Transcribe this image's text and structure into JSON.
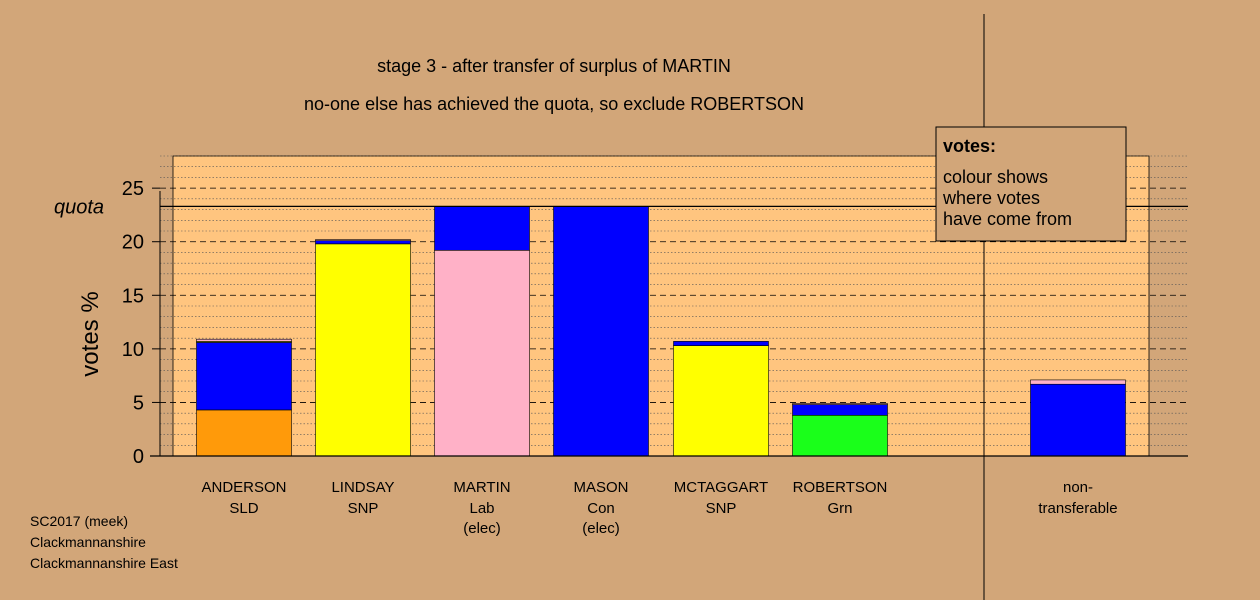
{
  "title": {
    "line1": "stage 3 - after transfer of surplus of MARTIN",
    "line2": "no-one else has achieved the quota, so exclude ROBERTSON"
  },
  "legend": {
    "heading": "votes:",
    "lines": [
      "colour shows",
      "where votes",
      "have come from"
    ]
  },
  "footer": {
    "lines": [
      "SC2017 (meek)",
      "Clackmannanshire",
      "Clackmannanshire East"
    ]
  },
  "colors": {
    "background": "#d2a679",
    "plot_area": "#ffc57f",
    "SLD": "#ff9a0a",
    "SNP": "#ffff00",
    "Lab": "#ffb1c7",
    "Con": "#0000ff",
    "Grn": "#1aff1a"
  },
  "chart_data": {
    "type": "bar",
    "stacked": true,
    "ylabel": "votes %",
    "ylim": [
      0,
      28
    ],
    "yticks": [
      0,
      5,
      10,
      15,
      20,
      25
    ],
    "quota": 23.3,
    "quota_label": "quota",
    "grid": true,
    "legend_position": "top-right",
    "categories": [
      {
        "name": "ANDERSON",
        "party": "SLD",
        "note": ""
      },
      {
        "name": "LINDSAY",
        "party": "SNP",
        "note": ""
      },
      {
        "name": "MARTIN",
        "party": "Lab",
        "note": "(elec)"
      },
      {
        "name": "MASON",
        "party": "Con",
        "note": "(elec)"
      },
      {
        "name": "MCTAGGART",
        "party": "SNP",
        "note": ""
      },
      {
        "name": "ROBERTSON",
        "party": "Grn",
        "note": ""
      },
      {
        "name": "non-",
        "party": "transferable",
        "note": ""
      }
    ],
    "bars": [
      {
        "segments": [
          {
            "source": "SLD",
            "value": 4.3
          },
          {
            "source": "Con",
            "value": 6.3
          },
          {
            "source": "SNP",
            "value": 0.1
          },
          {
            "source": "Lab",
            "value": 0.2
          }
        ]
      },
      {
        "segments": [
          {
            "source": "SNP",
            "value": 19.8
          },
          {
            "source": "Con",
            "value": 0.3
          },
          {
            "source": "Lab",
            "value": 0.1
          }
        ]
      },
      {
        "segments": [
          {
            "source": "Lab",
            "value": 19.2
          },
          {
            "source": "Con",
            "value": 4.1
          }
        ]
      },
      {
        "segments": [
          {
            "source": "Con",
            "value": 23.3
          }
        ]
      },
      {
        "segments": [
          {
            "source": "SNP",
            "value": 10.3
          },
          {
            "source": "Con",
            "value": 0.4
          }
        ]
      },
      {
        "segments": [
          {
            "source": "Grn",
            "value": 3.8
          },
          {
            "source": "Con",
            "value": 1.0
          },
          {
            "source": "Lab",
            "value": 0.1
          }
        ]
      },
      {
        "segments": [
          {
            "source": "Con",
            "value": 6.7
          },
          {
            "source": "Lab",
            "value": 0.4
          }
        ]
      }
    ]
  }
}
